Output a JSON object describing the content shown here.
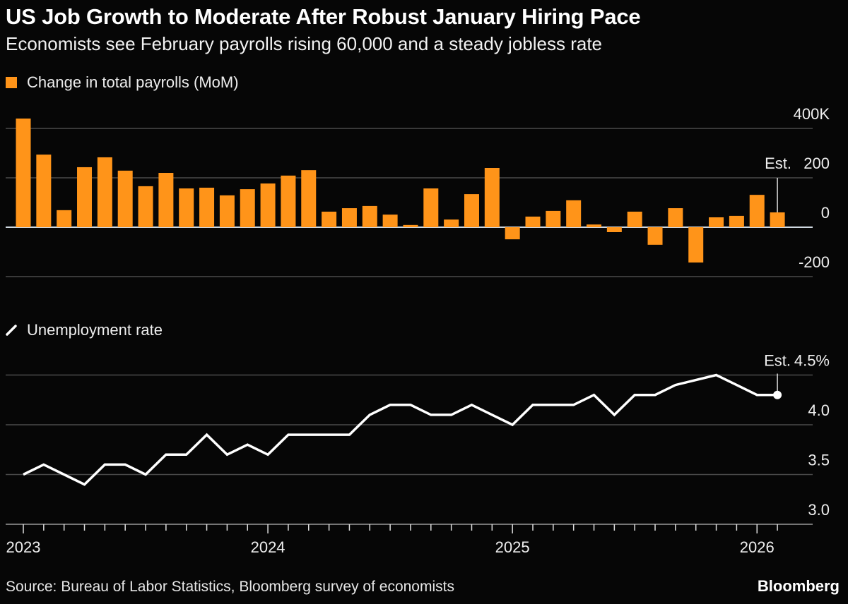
{
  "title": "US Job Growth to Moderate After Robust January Hiring Pace",
  "subtitle": "Economists see February payrolls rising 60,000 and a steady jobless rate",
  "source": "Source: Bureau of Labor Statistics, Bloomberg survey of economists",
  "brand": "Bloomberg",
  "colors": {
    "bars": "#ff9419",
    "line": "#ffffff",
    "background": "#060606",
    "grid": "#4a4a4a"
  },
  "chart_data": [
    {
      "type": "bar",
      "legend": "Change in total payrolls (MoM)",
      "legend_placement": "top-left",
      "grid": true,
      "ylim": [
        -200,
        400
      ],
      "y_ticks": [
        {
          "value": 400,
          "label": "400K"
        },
        {
          "value": 200,
          "label": "200"
        },
        {
          "value": 0,
          "label": "0"
        },
        {
          "value": -200,
          "label": "-200"
        }
      ],
      "annotation": "Est.",
      "x_start": "2023-01",
      "categories": [
        "Jan 2023",
        "Feb 2023",
        "Mar 2023",
        "Apr 2023",
        "May 2023",
        "Jun 2023",
        "Jul 2023",
        "Aug 2023",
        "Sep 2023",
        "Oct 2023",
        "Nov 2023",
        "Dec 2023",
        "Jan 2024",
        "Feb 2024",
        "Mar 2024",
        "Apr 2024",
        "May 2024",
        "Jun 2024",
        "Jul 2024",
        "Aug 2024",
        "Sep 2024",
        "Oct 2024",
        "Nov 2024",
        "Dec 2024",
        "Jan 2025",
        "Feb 2025",
        "Mar 2025",
        "Apr 2025",
        "May 2025",
        "Jun 2025",
        "Jul 2025",
        "Aug 2025",
        "Sep 2025",
        "Oct 2025",
        "Nov 2025",
        "Dec 2025",
        "Jan 2026",
        "Feb 2026"
      ],
      "values": [
        440,
        294,
        69,
        243,
        283,
        229,
        166,
        220,
        157,
        160,
        129,
        154,
        177,
        209,
        231,
        63,
        77,
        86,
        51,
        9,
        157,
        31,
        134,
        240,
        -49,
        43,
        66,
        109,
        11,
        -20,
        63,
        -71,
        77,
        -143,
        40,
        46,
        131,
        60
      ],
      "estimate_index": 37
    },
    {
      "type": "line",
      "legend": "Unemployment rate",
      "legend_placement": "top-left",
      "grid": true,
      "ylim": [
        3.0,
        4.5
      ],
      "y_ticks": [
        {
          "value": 4.5,
          "label": "4.5%"
        },
        {
          "value": 4.0,
          "label": "4.0"
        },
        {
          "value": 3.5,
          "label": "3.5"
        },
        {
          "value": 3.0,
          "label": "3.0"
        }
      ],
      "annotation": "Est.",
      "x_tick_labels": [
        "2023",
        "2024",
        "2025",
        "2026"
      ],
      "values": [
        3.5,
        3.6,
        3.5,
        3.4,
        3.6,
        3.6,
        3.5,
        3.7,
        3.7,
        3.9,
        3.7,
        3.8,
        3.7,
        3.9,
        3.9,
        3.9,
        3.9,
        4.1,
        4.2,
        4.2,
        4.1,
        4.1,
        4.2,
        4.1,
        4.0,
        4.2,
        4.2,
        4.2,
        4.3,
        4.1,
        4.3,
        4.3,
        4.4,
        null,
        4.5,
        4.4,
        4.3,
        4.3
      ],
      "estimate_index": 37
    }
  ]
}
